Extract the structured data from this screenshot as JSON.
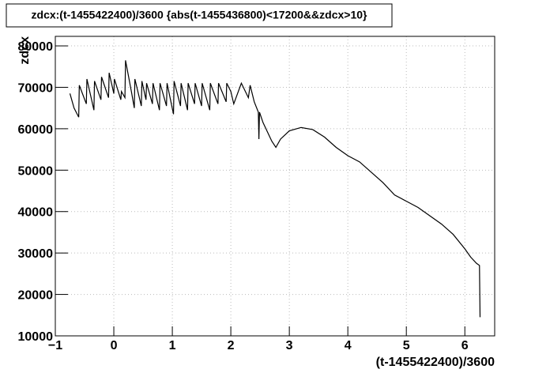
{
  "chart_data": {
    "type": "line",
    "title": "zdcx:(t-1455422400)/3600 {abs(t-1455436800)<17200&&zdcx>10}",
    "x_label": "(t-1455422400)/3600",
    "y_label": "zdcx",
    "color": "#000000",
    "grid": true,
    "xlim": [
      -1,
      6.51
    ],
    "ylim": [
      10000,
      82300
    ],
    "xticks": [
      {
        "value": -1,
        "label": "−1"
      },
      0,
      1,
      2,
      3,
      4,
      5,
      6
    ],
    "yticks": [
      10000,
      20000,
      30000,
      40000,
      50000,
      60000,
      70000,
      80000
    ],
    "x": [
      -0.75,
      -0.68,
      -0.6,
      -0.59,
      -0.47,
      -0.46,
      -0.34,
      -0.33,
      -0.22,
      -0.21,
      -0.09,
      -0.08,
      0.0,
      0.01,
      0.12,
      0.13,
      0.19,
      0.2,
      0.3,
      0.35,
      0.36,
      0.47,
      0.48,
      0.55,
      0.56,
      0.66,
      0.67,
      0.78,
      0.79,
      0.9,
      0.91,
      1.02,
      1.03,
      1.14,
      1.15,
      1.26,
      1.27,
      1.38,
      1.39,
      1.5,
      1.51,
      1.64,
      1.65,
      1.78,
      1.79,
      1.92,
      1.93,
      2.0,
      2.05,
      2.18,
      2.3,
      2.33,
      2.4,
      2.47,
      2.48,
      2.49,
      2.55,
      2.7,
      2.77,
      2.85,
      3.0,
      3.2,
      3.4,
      3.6,
      3.8,
      3.9,
      4.0,
      4.2,
      4.4,
      4.6,
      4.8,
      5.0,
      5.2,
      5.4,
      5.6,
      5.8,
      6.0,
      6.1,
      6.2,
      6.25,
      6.26
    ],
    "values": [
      68500,
      65000,
      62800,
      70500,
      66000,
      72000,
      64500,
      71500,
      67000,
      72500,
      67500,
      73500,
      68500,
      72000,
      67000,
      69000,
      67500,
      76500,
      69000,
      65000,
      72000,
      65500,
      71500,
      67000,
      71000,
      66000,
      71000,
      64500,
      71000,
      65500,
      71000,
      63500,
      71500,
      65500,
      71000,
      64500,
      71000,
      66000,
      71000,
      65500,
      71000,
      64500,
      71000,
      66000,
      71000,
      66500,
      71000,
      69000,
      66000,
      71000,
      67500,
      70500,
      66500,
      64000,
      57500,
      64000,
      61500,
      57000,
      55500,
      57500,
      59500,
      60300,
      59800,
      58000,
      55500,
      54500,
      53500,
      52000,
      49500,
      47000,
      44000,
      42500,
      41000,
      39000,
      37000,
      34500,
      31000,
      29000,
      27500,
      27000,
      14500
    ]
  }
}
